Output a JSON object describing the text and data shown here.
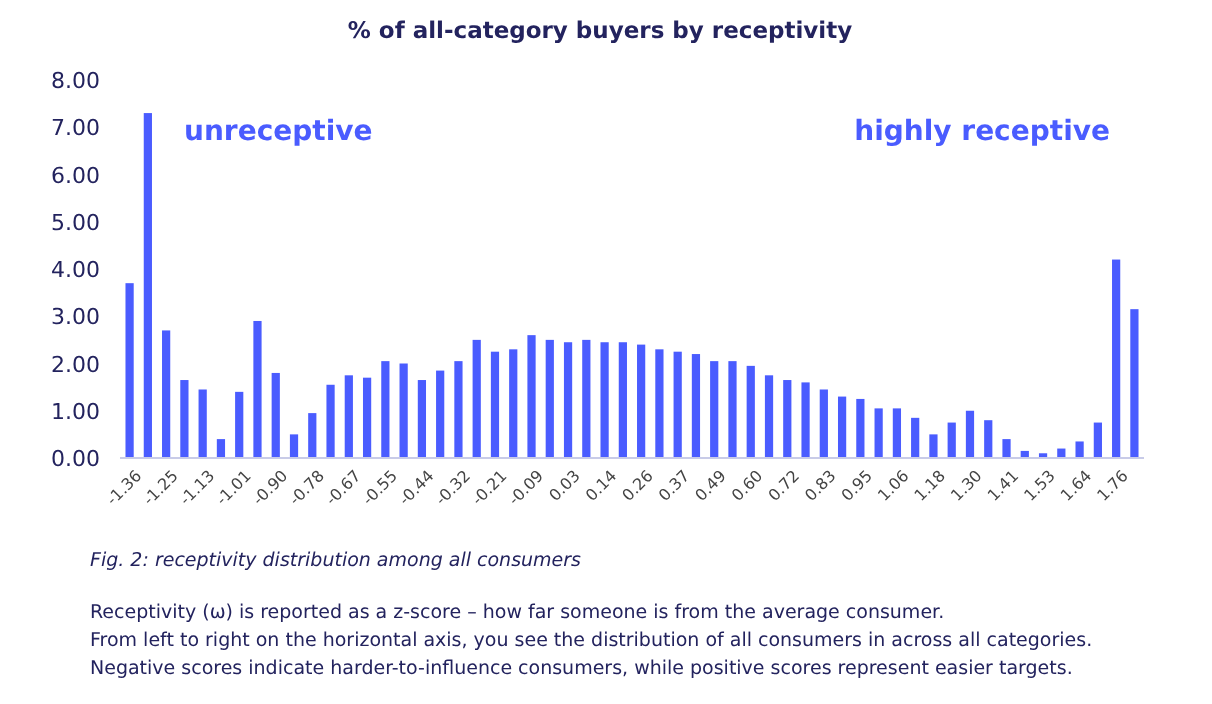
{
  "chart_data": {
    "type": "bar",
    "title": "% of all-category buyers by receptivity",
    "categories": [
      "-1.36",
      null,
      "-1.25",
      null,
      "-1.13",
      null,
      "-1.01",
      null,
      "-0.90",
      null,
      "-0.78",
      null,
      "-0.67",
      null,
      "-0.55",
      null,
      "-0.44",
      null,
      "-0.32",
      null,
      "-0.21",
      null,
      "-0.09",
      null,
      "0.03",
      null,
      "0.14",
      null,
      "0.26",
      null,
      "0.37",
      null,
      "0.49",
      null,
      "0.60",
      null,
      "0.72",
      null,
      "0.83",
      null,
      "0.95",
      null,
      "1.06",
      null,
      "1.18",
      null,
      "1.30",
      null,
      "1.41",
      null,
      "1.53",
      null,
      "1.64",
      null,
      "1.76",
      null
    ],
    "values": [
      3.7,
      7.3,
      2.7,
      1.65,
      1.45,
      0.4,
      1.4,
      2.9,
      1.8,
      0.5,
      0.95,
      1.55,
      1.75,
      1.7,
      2.05,
      2.0,
      1.65,
      1.85,
      2.05,
      2.5,
      2.25,
      2.3,
      2.6,
      2.5,
      2.45,
      2.5,
      2.45,
      2.45,
      2.4,
      2.3,
      2.25,
      2.2,
      2.05,
      2.05,
      1.95,
      1.75,
      1.65,
      1.6,
      1.45,
      1.3,
      1.25,
      1.05,
      1.05,
      0.85,
      0.5,
      0.75,
      1.0,
      0.8,
      0.4,
      0.15,
      0.1,
      0.2,
      0.35,
      0.75,
      4.2,
      3.15
    ],
    "color": "#4a5cff",
    "ylim": [
      0,
      8
    ],
    "yticks": [
      {
        "value": 0,
        "label": "0.00"
      },
      {
        "value": 1,
        "label": "1.00"
      },
      {
        "value": 2,
        "label": "2.00"
      },
      {
        "value": 3,
        "label": "3.00"
      },
      {
        "value": 4,
        "label": "4.00"
      },
      {
        "value": 5,
        "label": "5.00"
      },
      {
        "value": 6,
        "label": "6.00"
      },
      {
        "value": 7,
        "label": "7.00"
      },
      {
        "value": 8,
        "label": "8.00"
      }
    ],
    "grid": false,
    "annotations": [
      "unreceptive",
      "highly receptive",
      "Fig. 2: receptivity distribution among all consumers",
      "Receptivity (ω) is reported as a z-score – how far someone is from the average consumer.",
      "From left to right on the horizontal axis, you see the distribution of all consumers in across all categories.",
      "Negative scores indicate harder-to-influence consumers, while positive scores represent easier targets."
    ]
  }
}
